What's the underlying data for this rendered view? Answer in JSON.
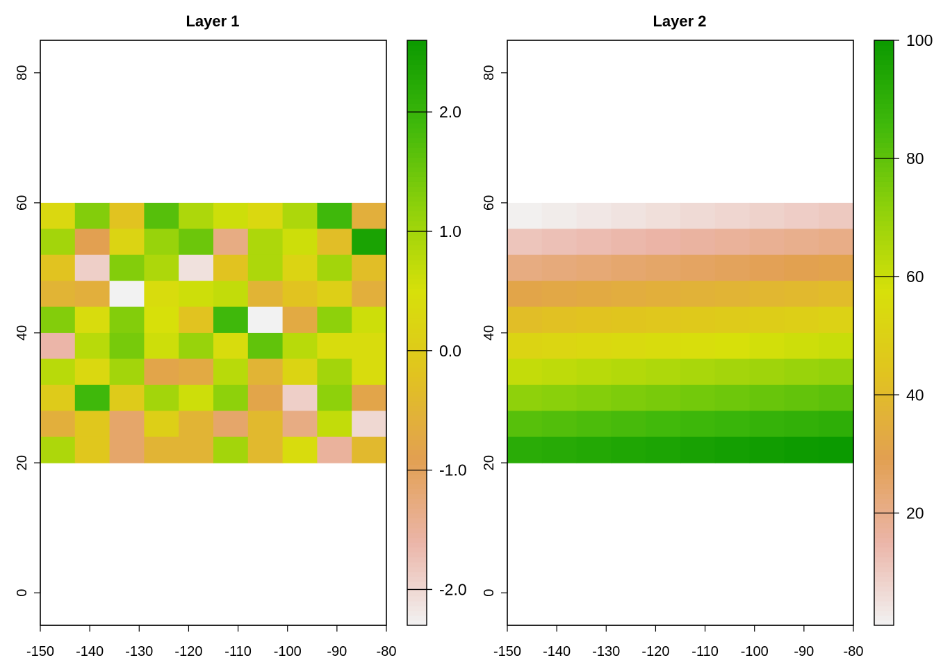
{
  "chart_data": [
    {
      "type": "heatmap",
      "title": "Layer 1",
      "xlim": [
        -150,
        -80
      ],
      "ylim": [
        -5,
        85
      ],
      "x_ticks": [
        "-150",
        "-140",
        "-130",
        "-120",
        "-110",
        "-100",
        "-90",
        "-80"
      ],
      "y_ticks": [
        "0",
        "20",
        "40",
        "60",
        "80"
      ],
      "raster_extent": {
        "x": [
          -150,
          -80
        ],
        "y": [
          20,
          60
        ]
      },
      "rows_top_to_bottom": [
        [
          0.3,
          1.3,
          -0.2,
          1.7,
          0.9,
          0.6,
          0.3,
          0.9,
          1.9,
          -0.6
        ],
        [
          1.0,
          -0.9,
          0.2,
          1.1,
          1.5,
          -1.3,
          0.9,
          0.6,
          -0.3,
          2.4
        ],
        [
          -0.2,
          -1.9,
          1.3,
          0.9,
          -2.1,
          -0.2,
          0.9,
          0.2,
          1.0,
          -0.3
        ],
        [
          -0.5,
          -0.6,
          -2.3,
          0.4,
          0.6,
          0.7,
          -0.5,
          -0.2,
          0.1,
          -0.6
        ],
        [
          1.3,
          0.4,
          1.3,
          0.5,
          -0.2,
          1.9,
          -2.3,
          -0.7,
          1.2,
          0.6
        ],
        [
          -1.6,
          0.8,
          1.4,
          0.6,
          1.1,
          0.4,
          1.6,
          0.8,
          0.4,
          0.4
        ],
        [
          0.8,
          0.3,
          1.0,
          -0.8,
          -0.7,
          0.8,
          -0.5,
          0.2,
          1.0,
          0.4
        ],
        [
          0.0,
          1.9,
          0.0,
          1.0,
          0.6,
          1.2,
          -0.8,
          -1.9,
          1.2,
          -0.8
        ],
        [
          -0.6,
          -0.1,
          -1.1,
          0.1,
          -0.5,
          -1.1,
          -0.4,
          -1.3,
          0.7,
          -2.0
        ],
        [
          0.9,
          -0.1,
          -1.1,
          -0.5,
          -0.5,
          1.0,
          -0.4,
          0.4,
          -1.5,
          -0.4
        ]
      ],
      "colorbar": {
        "min": -2.3,
        "max": 2.6,
        "ticks": [
          -2.0,
          -1.0,
          0.0,
          1.0,
          2.0
        ],
        "tick_labels": [
          "-2.0",
          "-1.0",
          "0.0",
          "1.0",
          "2.0"
        ]
      }
    },
    {
      "type": "heatmap",
      "title": "Layer 2",
      "xlim": [
        -150,
        -80
      ],
      "ylim": [
        -5,
        85
      ],
      "x_ticks": [
        "-150",
        "-140",
        "-130",
        "-120",
        "-110",
        "-100",
        "-90",
        "-80"
      ],
      "y_ticks": [
        "0",
        "20",
        "40",
        "60",
        "80"
      ],
      "raster_extent": {
        "x": [
          -150,
          -80
        ],
        "y": [
          20,
          60
        ]
      },
      "values_note_skip": true,
      "first_cell": 1,
      "colorbar": {
        "min": 1,
        "max": 100,
        "ticks": [
          20,
          40,
          60,
          80,
          100
        ],
        "tick_labels": [
          "20",
          "40",
          "60",
          "80",
          "100"
        ]
      }
    }
  ],
  "palette_stops": [
    "#f2f2f2",
    "#ebb5a8",
    "#e2a051",
    "#e1c320",
    "#d7e00a",
    "#8ed10b",
    "#3fb80b",
    "#0b9a00"
  ]
}
